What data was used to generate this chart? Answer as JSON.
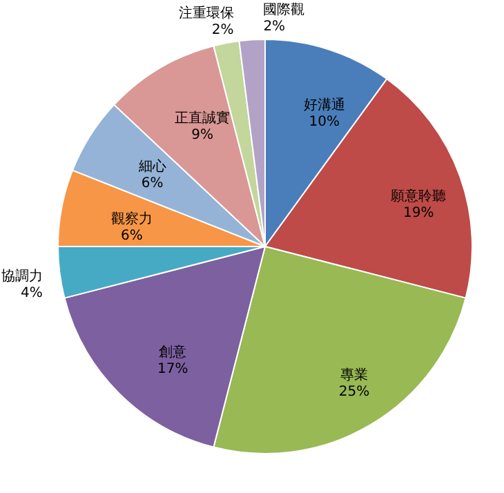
{
  "chart_data": {
    "type": "pie",
    "categories": [
      "好溝通",
      "願意聆聽",
      "專業",
      "創意",
      "協調力",
      "觀察力",
      "細心",
      "正直誠實",
      "注重環保",
      "國際觀"
    ],
    "values": [
      10,
      19,
      25,
      17,
      4,
      6,
      6,
      9,
      2,
      2
    ],
    "value_labels": [
      "10%",
      "19%",
      "25%",
      "17%",
      "4%",
      "6%",
      "6%",
      "9%",
      "2%",
      "2%"
    ],
    "colors": [
      "#4a7ebb",
      "#be4b48",
      "#98b954",
      "#7d60a0",
      "#46aac5",
      "#f79646",
      "#95b3d7",
      "#d99795",
      "#c3d69b",
      "#b3a2c7"
    ],
    "legend": false
  }
}
